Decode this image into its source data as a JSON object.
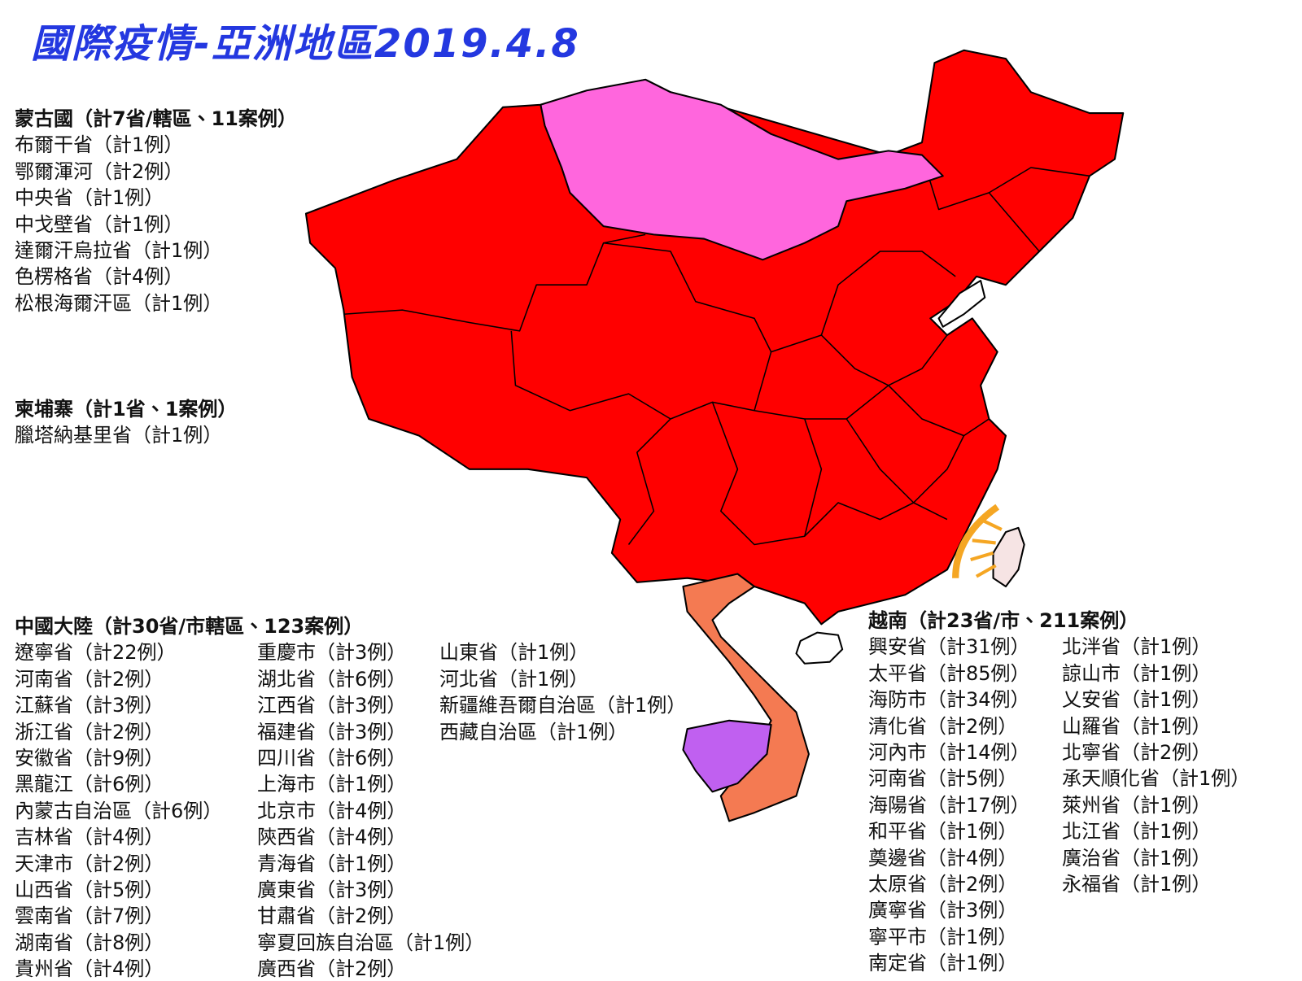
{
  "title": "國際疫情-亞洲地區2019.4.8",
  "mongolia": {
    "heading": "蒙古國（計7省/轄區、11案例）",
    "items": [
      "布爾干省（計1例）",
      "鄂爾渾河（計2例）",
      "中央省（計1例）",
      "中戈壁省（計1例）",
      "達爾汗烏拉省（計1例）",
      "色楞格省（計4例）",
      "松根海爾汗區（計1例）"
    ]
  },
  "cambodia": {
    "heading": "柬埔寨（計1省、1案例）",
    "items": [
      "臘塔納基里省（計1例）"
    ]
  },
  "china": {
    "heading": "中國大陸（計30省/市轄區、123案例）",
    "columns": [
      [
        "遼寧省（計22例）",
        "河南省（計2例）",
        "江蘇省（計3例）",
        "浙江省（計2例）",
        "安徽省（計9例）",
        "黑龍江（計6例）",
        "內蒙古自治區（計6例）",
        "吉林省（計4例）",
        "天津市（計2例）",
        "山西省（計5例）",
        "雲南省（計7例）",
        "湖南省（計8例）",
        "貴州省（計4例）"
      ],
      [
        "重慶市（計3例）",
        "湖北省（計6例）",
        "江西省（計3例）",
        "福建省（計3例）",
        "四川省（計6例）",
        "上海市（計1例）",
        "北京市（計4例）",
        "陝西省（計4例）",
        "青海省（計1例）",
        "廣東省（計3例）",
        "甘肅省（計2例）",
        "寧夏回族自治區（計1例）",
        "廣西省（計2例）"
      ],
      [
        "山東省（計1例）",
        "河北省（計1例）",
        "新疆維吾爾自治區（計1例）",
        "西藏自治區（計1例）"
      ]
    ]
  },
  "vietnam": {
    "heading": "越南（計23省/市、211案例）",
    "columns": [
      [
        "興安省（計31例）",
        "太平省（計85例）",
        "海防市（計34例）",
        "清化省（計2例）",
        "河內市（計14例）",
        "河南省（計5例）",
        "海陽省（計17例）",
        "和平省（計1例）",
        "奠邊省（計4例）",
        "太原省（計2例）",
        "廣寧省（計3例）",
        "寧平市（計1例）",
        "南定省（計1例）"
      ],
      [
        "北泮省（計1例）",
        "諒山市（計1例）",
        "乂安省（計1例）",
        "山羅省（計1例）",
        "北寧省（計2例）",
        "承天順化省（計1例）",
        "萊州省（計1例）",
        "北江省（計1例）",
        "廣治省（計1例）",
        "永福省（計1例）"
      ]
    ]
  }
}
